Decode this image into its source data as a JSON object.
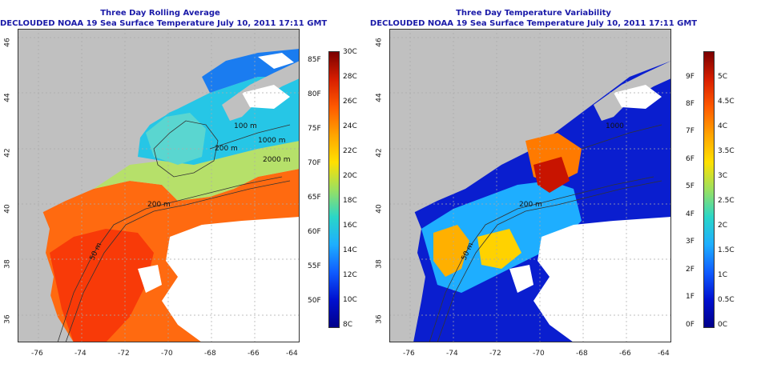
{
  "left_panel": {
    "title": "Three Day Rolling Average",
    "subtitle": "DECLOUDED NOAA 19 Sea Surface Temperature July 10, 2011 17:11 GMT",
    "x_ticks": [
      "-76",
      "-74",
      "-72",
      "-70",
      "-68",
      "-66",
      "-64"
    ],
    "y_ticks": [
      "46",
      "44",
      "42",
      "40",
      "38",
      "36"
    ],
    "contour_labels": [
      "50 m",
      "200 m",
      "100 m",
      "200 m",
      "1000 m",
      "2000 m"
    ],
    "colorbar": {
      "celsius": [
        "30C",
        "28C",
        "26C",
        "24C",
        "22C",
        "20C",
        "18C",
        "16C",
        "14C",
        "12C",
        "10C",
        "8C"
      ],
      "fahrenheit": [
        "85F",
        "80F",
        "75F",
        "70F",
        "65F",
        "60F",
        "55F",
        "50F"
      ]
    }
  },
  "right_panel": {
    "title": "Three Day Temperature Variability",
    "subtitle": "DECLOUDED NOAA 19 Sea Surface Temperature July 10, 2011 17:11 GMT",
    "x_ticks": [
      "-76",
      "-74",
      "-72",
      "-70",
      "-68",
      "-66",
      "-64"
    ],
    "y_ticks": [
      "46",
      "44",
      "42",
      "40",
      "38",
      "36"
    ],
    "contour_labels": [
      "50 m",
      "200 m",
      "1000"
    ],
    "colorbar": {
      "celsius": [
        "5C",
        "4.5C",
        "4C",
        "3.5C",
        "3C",
        "2.5C",
        "2C",
        "1.5C",
        "1C",
        "0.5C",
        "0C"
      ],
      "fahrenheit": [
        "9F",
        "8F",
        "7F",
        "6F",
        "5F",
        "4F",
        "3F",
        "2F",
        "1F",
        "0F"
      ]
    }
  },
  "colors": {
    "land": "#c0c0c0",
    "cloud": "#ffffff",
    "title": "#1a1aa8",
    "sst_gradient": [
      "#7a0000",
      "#d81e00",
      "#ff5a00",
      "#ffa300",
      "#ffe000",
      "#9be060",
      "#2ad6c8",
      "#1eaeff",
      "#0f5cff",
      "#0010d0",
      "#00008a"
    ],
    "var_gradient": [
      "#7a0000",
      "#d81e00",
      "#ff5a00",
      "#ffa300",
      "#ffe000",
      "#9be060",
      "#2ad6c8",
      "#1eaeff",
      "#0f5cff",
      "#0010d0",
      "#00008a"
    ]
  }
}
